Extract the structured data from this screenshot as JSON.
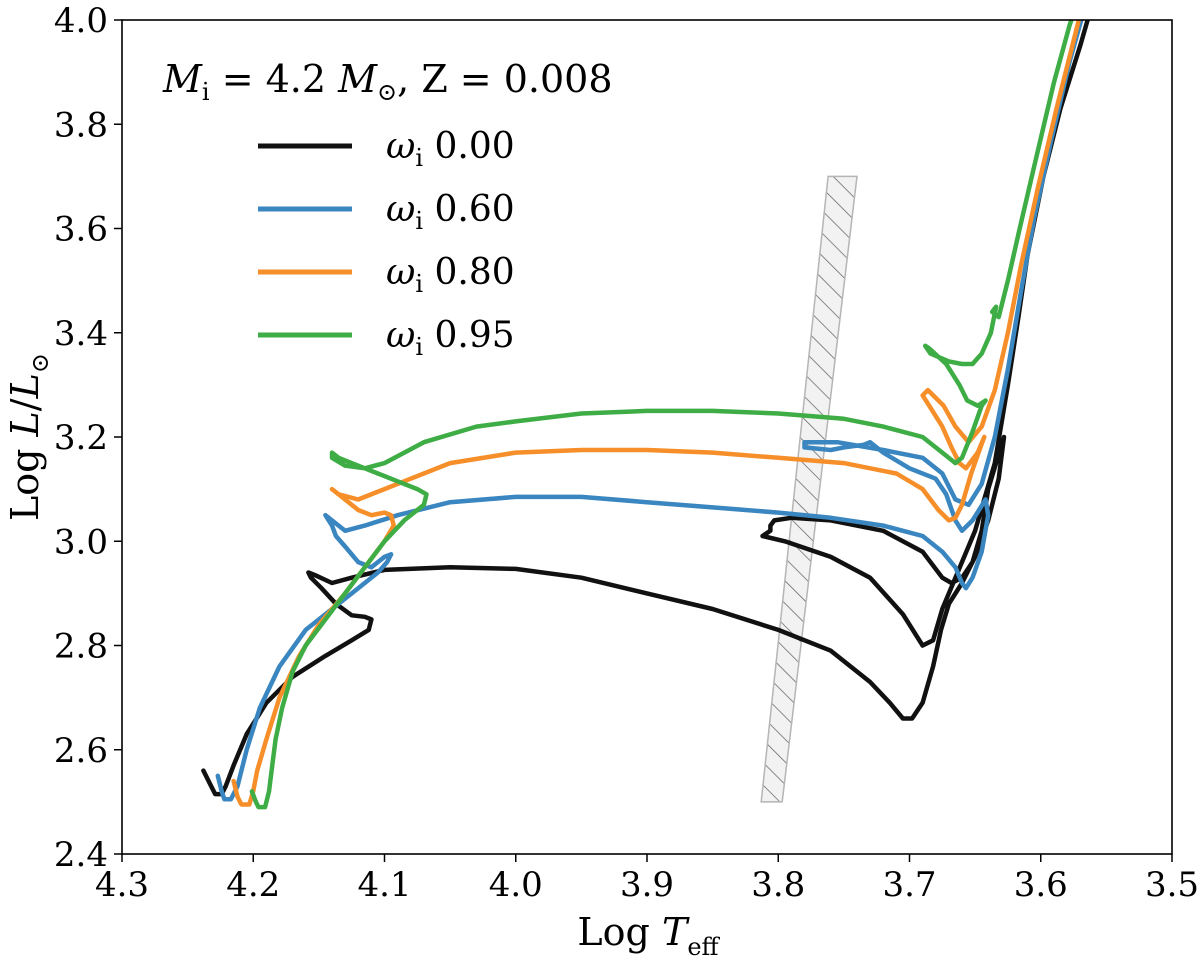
{
  "chart_data": {
    "type": "line",
    "title": "",
    "xlabel": "Log T_eff",
    "ylabel": "Log L/L_sun",
    "xlabel_parts": {
      "main": "Log ",
      "sym": "T",
      "sub": "eff"
    },
    "ylabel_parts": {
      "main": "Log ",
      "sym": "L",
      "slash": "/",
      "sym2": "L",
      "sub": "⊙"
    },
    "xlim": [
      4.3,
      3.5
    ],
    "ylim": [
      2.4,
      4.0
    ],
    "x_inverted": true,
    "xticks": [
      "4.3",
      "4.2",
      "4.1",
      "4.0",
      "3.9",
      "3.8",
      "3.7",
      "3.6",
      "3.5"
    ],
    "yticks": [
      "2.4",
      "2.6",
      "2.8",
      "3.0",
      "3.2",
      "3.4",
      "3.6",
      "3.8",
      "4.0"
    ],
    "legend_title": {
      "m": "M",
      "m_sub": "i",
      "eq": " = 4.2 ",
      "msun": "M",
      "msun_sub": "⊙",
      "rest": ", Z = 0.008"
    },
    "legend_location": "top-left",
    "instability_strip": {
      "label": "hatched region",
      "polygon": [
        [
          3.813,
          2.5
        ],
        [
          3.797,
          2.5
        ],
        [
          3.74,
          3.7
        ],
        [
          3.762,
          3.7
        ]
      ]
    },
    "series": [
      {
        "name": "ω_i 0.00",
        "legend_sym": "ω",
        "legend_sub": "i",
        "legend_value": "0.00",
        "color": "#111111",
        "points": [
          [
            4.238,
            2.56
          ],
          [
            4.232,
            2.53
          ],
          [
            4.229,
            2.515
          ],
          [
            4.224,
            2.515
          ],
          [
            4.221,
            2.53
          ],
          [
            4.215,
            2.57
          ],
          [
            4.205,
            2.63
          ],
          [
            4.19,
            2.69
          ],
          [
            4.17,
            2.74
          ],
          [
            4.145,
            2.78
          ],
          [
            4.125,
            2.81
          ],
          [
            4.112,
            2.83
          ],
          [
            4.11,
            2.85
          ],
          [
            4.115,
            2.855
          ],
          [
            4.125,
            2.858
          ],
          [
            4.137,
            2.88
          ],
          [
            4.148,
            2.91
          ],
          [
            4.156,
            2.93
          ],
          [
            4.158,
            2.94
          ],
          [
            4.153,
            2.935
          ],
          [
            4.14,
            2.92
          ],
          [
            4.125,
            2.93
          ],
          [
            4.1,
            2.945
          ],
          [
            4.05,
            2.95
          ],
          [
            4.0,
            2.947
          ],
          [
            3.95,
            2.93
          ],
          [
            3.9,
            2.9
          ],
          [
            3.85,
            2.87
          ],
          [
            3.8,
            2.83
          ],
          [
            3.76,
            2.79
          ],
          [
            3.73,
            2.73
          ],
          [
            3.715,
            2.69
          ],
          [
            3.705,
            2.66
          ],
          [
            3.698,
            2.66
          ],
          [
            3.69,
            2.69
          ],
          [
            3.682,
            2.76
          ],
          [
            3.676,
            2.83
          ],
          [
            3.67,
            2.88
          ],
          [
            3.66,
            2.92
          ],
          [
            3.65,
            2.97
          ],
          [
            3.64,
            3.04
          ],
          [
            3.632,
            3.12
          ],
          [
            3.628,
            3.2
          ],
          [
            3.64,
            3.1
          ],
          [
            3.645,
            3.02
          ],
          [
            3.652,
            2.96
          ],
          [
            3.66,
            2.93
          ],
          [
            3.668,
            2.92
          ],
          [
            3.675,
            2.93
          ],
          [
            3.69,
            2.98
          ],
          [
            3.72,
            3.02
          ],
          [
            3.76,
            3.04
          ],
          [
            3.79,
            3.045
          ],
          [
            3.803,
            3.04
          ],
          [
            3.806,
            3.03
          ],
          [
            3.806,
            3.02
          ],
          [
            3.812,
            3.01
          ],
          [
            3.795,
            3.0
          ],
          [
            3.76,
            2.97
          ],
          [
            3.73,
            2.93
          ],
          [
            3.705,
            2.86
          ],
          [
            3.69,
            2.8
          ],
          [
            3.682,
            2.81
          ],
          [
            3.675,
            2.87
          ],
          [
            3.665,
            2.93
          ],
          [
            3.65,
            3.02
          ],
          [
            3.635,
            3.15
          ],
          [
            3.625,
            3.3
          ],
          [
            3.617,
            3.43
          ],
          [
            3.61,
            3.55
          ],
          [
            3.598,
            3.7
          ],
          [
            3.585,
            3.83
          ],
          [
            3.57,
            3.95
          ],
          [
            3.562,
            4.02
          ]
        ]
      },
      {
        "name": "ω_i 0.60",
        "legend_sym": "ω",
        "legend_sub": "i",
        "legend_value": "0.60",
        "color": "#3a86c0",
        "points": [
          [
            4.227,
            2.55
          ],
          [
            4.224,
            2.52
          ],
          [
            4.222,
            2.505
          ],
          [
            4.217,
            2.505
          ],
          [
            4.212,
            2.53
          ],
          [
            4.205,
            2.6
          ],
          [
            4.195,
            2.68
          ],
          [
            4.18,
            2.76
          ],
          [
            4.16,
            2.83
          ],
          [
            4.14,
            2.87
          ],
          [
            4.12,
            2.91
          ],
          [
            4.105,
            2.94
          ],
          [
            4.098,
            2.96
          ],
          [
            4.095,
            2.975
          ],
          [
            4.1,
            2.97
          ],
          [
            4.11,
            2.95
          ],
          [
            4.12,
            2.96
          ],
          [
            4.13,
            2.99
          ],
          [
            4.137,
            3.01
          ],
          [
            4.14,
            3.03
          ],
          [
            4.145,
            3.05
          ],
          [
            4.14,
            3.04
          ],
          [
            4.13,
            3.02
          ],
          [
            4.115,
            3.03
          ],
          [
            4.09,
            3.05
          ],
          [
            4.05,
            3.075
          ],
          [
            4.0,
            3.085
          ],
          [
            3.95,
            3.085
          ],
          [
            3.9,
            3.075
          ],
          [
            3.85,
            3.065
          ],
          [
            3.8,
            3.055
          ],
          [
            3.76,
            3.045
          ],
          [
            3.72,
            3.03
          ],
          [
            3.69,
            3.01
          ],
          [
            3.675,
            2.98
          ],
          [
            3.665,
            2.95
          ],
          [
            3.66,
            2.92
          ],
          [
            3.657,
            2.91
          ],
          [
            3.652,
            2.93
          ],
          [
            3.645,
            2.98
          ],
          [
            3.64,
            3.05
          ],
          [
            3.642,
            3.08
          ],
          [
            3.652,
            3.04
          ],
          [
            3.66,
            3.02
          ],
          [
            3.665,
            3.04
          ],
          [
            3.672,
            3.09
          ],
          [
            3.68,
            3.12
          ],
          [
            3.7,
            3.14
          ],
          [
            3.72,
            3.17
          ],
          [
            3.73,
            3.19
          ],
          [
            3.735,
            3.185
          ],
          [
            3.75,
            3.18
          ],
          [
            3.76,
            3.175
          ],
          [
            3.78,
            3.18
          ],
          [
            3.78,
            3.19
          ],
          [
            3.755,
            3.19
          ],
          [
            3.72,
            3.175
          ],
          [
            3.69,
            3.16
          ],
          [
            3.675,
            3.13
          ],
          [
            3.665,
            3.08
          ],
          [
            3.655,
            3.07
          ],
          [
            3.645,
            3.11
          ],
          [
            3.635,
            3.2
          ],
          [
            3.625,
            3.33
          ],
          [
            3.615,
            3.48
          ],
          [
            3.605,
            3.62
          ],
          [
            3.592,
            3.77
          ],
          [
            3.578,
            3.92
          ],
          [
            3.567,
            4.02
          ]
        ]
      },
      {
        "name": "ω_i 0.80",
        "legend_sym": "ω",
        "legend_sub": "i",
        "legend_value": "0.80",
        "color": "#f68f2a",
        "points": [
          [
            4.215,
            2.54
          ],
          [
            4.212,
            2.51
          ],
          [
            4.209,
            2.495
          ],
          [
            4.203,
            2.495
          ],
          [
            4.2,
            2.52
          ],
          [
            4.197,
            2.56
          ],
          [
            4.19,
            2.62
          ],
          [
            4.18,
            2.7
          ],
          [
            4.165,
            2.78
          ],
          [
            4.15,
            2.84
          ],
          [
            4.13,
            2.9
          ],
          [
            4.115,
            2.95
          ],
          [
            4.1,
            3.0
          ],
          [
            4.093,
            3.03
          ],
          [
            4.095,
            3.05
          ],
          [
            4.1,
            3.055
          ],
          [
            4.11,
            3.05
          ],
          [
            4.12,
            3.06
          ],
          [
            4.13,
            3.08
          ],
          [
            4.135,
            3.09
          ],
          [
            4.14,
            3.1
          ],
          [
            4.135,
            3.09
          ],
          [
            4.12,
            3.08
          ],
          [
            4.1,
            3.1
          ],
          [
            4.08,
            3.12
          ],
          [
            4.05,
            3.15
          ],
          [
            4.0,
            3.17
          ],
          [
            3.95,
            3.175
          ],
          [
            3.9,
            3.175
          ],
          [
            3.85,
            3.17
          ],
          [
            3.8,
            3.16
          ],
          [
            3.75,
            3.15
          ],
          [
            3.71,
            3.13
          ],
          [
            3.69,
            3.1
          ],
          [
            3.678,
            3.06
          ],
          [
            3.67,
            3.04
          ],
          [
            3.665,
            3.045
          ],
          [
            3.66,
            3.07
          ],
          [
            3.653,
            3.13
          ],
          [
            3.646,
            3.18
          ],
          [
            3.643,
            3.2
          ],
          [
            3.648,
            3.17
          ],
          [
            3.657,
            3.14
          ],
          [
            3.662,
            3.15
          ],
          [
            3.668,
            3.18
          ],
          [
            3.675,
            3.22
          ],
          [
            3.685,
            3.26
          ],
          [
            3.69,
            3.28
          ],
          [
            3.686,
            3.29
          ],
          [
            3.674,
            3.26
          ],
          [
            3.665,
            3.22
          ],
          [
            3.655,
            3.19
          ],
          [
            3.645,
            3.22
          ],
          [
            3.635,
            3.29
          ],
          [
            3.625,
            3.4
          ],
          [
            3.615,
            3.53
          ],
          [
            3.602,
            3.68
          ],
          [
            3.588,
            3.83
          ],
          [
            3.574,
            3.97
          ],
          [
            3.569,
            4.02
          ]
        ]
      },
      {
        "name": "ω_i 0.95",
        "legend_sym": "ω",
        "legend_sub": "i",
        "legend_value": "0.95",
        "color": "#3fad45",
        "points": [
          [
            4.201,
            2.52
          ],
          [
            4.198,
            2.5
          ],
          [
            4.196,
            2.49
          ],
          [
            4.191,
            2.49
          ],
          [
            4.188,
            2.52
          ],
          [
            4.186,
            2.56
          ],
          [
            4.183,
            2.62
          ],
          [
            4.178,
            2.68
          ],
          [
            4.17,
            2.75
          ],
          [
            4.16,
            2.8
          ],
          [
            4.145,
            2.85
          ],
          [
            4.13,
            2.9
          ],
          [
            4.115,
            2.95
          ],
          [
            4.1,
            3.0
          ],
          [
            4.085,
            3.04
          ],
          [
            4.07,
            3.07
          ],
          [
            4.068,
            3.09
          ],
          [
            4.075,
            3.1
          ],
          [
            4.09,
            3.115
          ],
          [
            4.105,
            3.13
          ],
          [
            4.115,
            3.14
          ],
          [
            4.125,
            3.15
          ],
          [
            4.135,
            3.16
          ],
          [
            4.14,
            3.17
          ],
          [
            4.14,
            3.16
          ],
          [
            4.13,
            3.145
          ],
          [
            4.115,
            3.14
          ],
          [
            4.1,
            3.15
          ],
          [
            4.07,
            3.19
          ],
          [
            4.03,
            3.22
          ],
          [
            4.0,
            3.23
          ],
          [
            3.95,
            3.245
          ],
          [
            3.9,
            3.25
          ],
          [
            3.85,
            3.25
          ],
          [
            3.8,
            3.245
          ],
          [
            3.75,
            3.235
          ],
          [
            3.72,
            3.22
          ],
          [
            3.69,
            3.2
          ],
          [
            3.675,
            3.17
          ],
          [
            3.665,
            3.15
          ],
          [
            3.66,
            3.16
          ],
          [
            3.652,
            3.21
          ],
          [
            3.645,
            3.26
          ],
          [
            3.642,
            3.27
          ],
          [
            3.648,
            3.26
          ],
          [
            3.656,
            3.27
          ],
          [
            3.662,
            3.3
          ],
          [
            3.672,
            3.34
          ],
          [
            3.685,
            3.37
          ],
          [
            3.688,
            3.375
          ],
          [
            3.684,
            3.36
          ],
          [
            3.67,
            3.345
          ],
          [
            3.66,
            3.34
          ],
          [
            3.652,
            3.34
          ],
          [
            3.645,
            3.36
          ],
          [
            3.638,
            3.4
          ],
          [
            3.634,
            3.45
          ],
          [
            3.637,
            3.44
          ],
          [
            3.632,
            3.43
          ],
          [
            3.625,
            3.5
          ],
          [
            3.616,
            3.6
          ],
          [
            3.604,
            3.73
          ],
          [
            3.59,
            3.88
          ],
          [
            3.578,
            3.99
          ],
          [
            3.574,
            4.02
          ]
        ]
      }
    ]
  }
}
